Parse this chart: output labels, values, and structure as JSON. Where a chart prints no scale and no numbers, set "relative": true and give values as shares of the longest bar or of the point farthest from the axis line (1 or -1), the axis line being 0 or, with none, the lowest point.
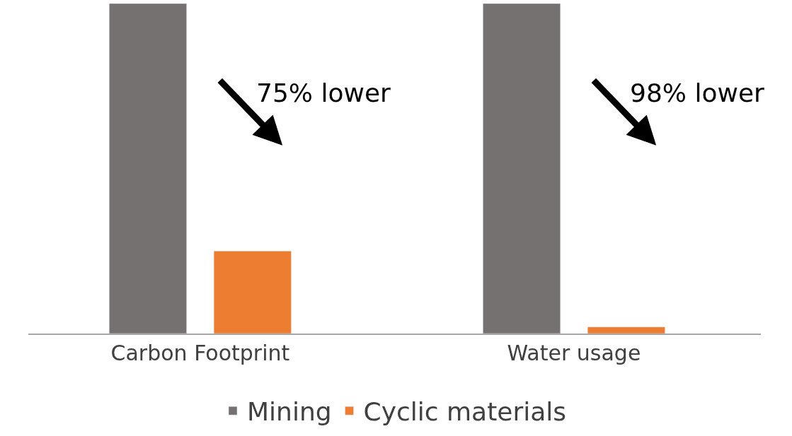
{
  "chart_data": {
    "type": "bar",
    "relative": true,
    "categories": [
      "Carbon Footprint",
      "Water usage"
    ],
    "series": [
      {
        "name": "Mining",
        "color": "#767171",
        "values": [
          1,
          1
        ]
      },
      {
        "name": "Cyclic materials",
        "color": "#ed7d31",
        "values": [
          0.25,
          0.02
        ]
      }
    ],
    "annotations": [
      "75% lower",
      "98% lower"
    ],
    "legend": "bottom"
  }
}
